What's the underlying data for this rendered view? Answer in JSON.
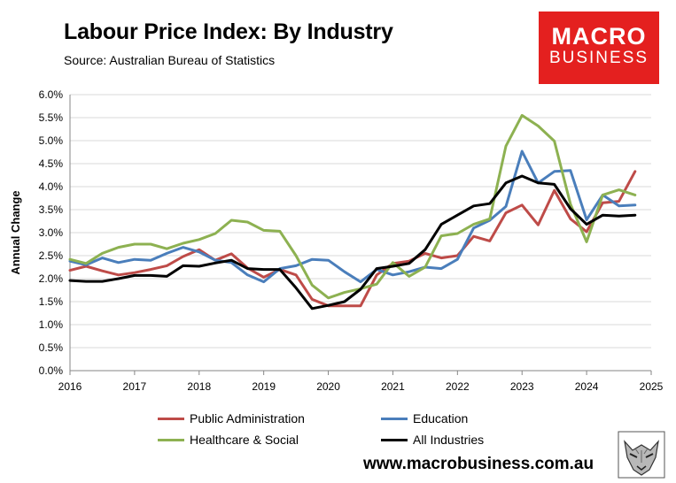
{
  "header": {
    "title": "Labour Price Index: By Industry",
    "subtitle": "Source: Australian Bureau of Statistics"
  },
  "logo": {
    "line1": "MACRO",
    "line2": "BUSINESS"
  },
  "footer": {
    "url": "www.macrobusiness.com.au"
  },
  "chart_data": {
    "type": "line",
    "title": "Labour Price Index: By Industry",
    "ylabel": "Annual Change",
    "xlabel": "",
    "xlim": [
      2016,
      2025
    ],
    "ylim": [
      0,
      6
    ],
    "grid": "horizontal",
    "legend_position": "bottom",
    "x_ticks": [
      "2016",
      "2017",
      "2018",
      "2019",
      "2020",
      "2021",
      "2022",
      "2023",
      "2024",
      "2025"
    ],
    "y_ticks": [
      "0.0%",
      "0.5%",
      "1.0%",
      "1.5%",
      "2.0%",
      "2.5%",
      "3.0%",
      "3.5%",
      "4.0%",
      "4.5%",
      "5.0%",
      "5.5%",
      "6.0%"
    ],
    "x": [
      2016.0,
      2016.25,
      2016.5,
      2016.75,
      2017.0,
      2017.25,
      2017.5,
      2017.75,
      2018.0,
      2018.25,
      2018.5,
      2018.75,
      2019.0,
      2019.25,
      2019.5,
      2019.75,
      2020.0,
      2020.25,
      2020.5,
      2020.75,
      2021.0,
      2021.25,
      2021.5,
      2021.75,
      2022.0,
      2022.25,
      2022.5,
      2022.75,
      2023.0,
      2023.25,
      2023.5,
      2023.75,
      2024.0,
      2024.25,
      2024.5,
      2024.75
    ],
    "series": [
      {
        "name": "Public Administration",
        "color": "#be4b48",
        "values": [
          2.18,
          2.27,
          2.17,
          2.08,
          2.13,
          2.2,
          2.28,
          2.48,
          2.63,
          2.4,
          2.54,
          2.23,
          2.03,
          2.2,
          2.08,
          1.55,
          1.41,
          1.41,
          1.41,
          2.08,
          2.33,
          2.38,
          2.55,
          2.45,
          2.5,
          2.92,
          2.82,
          3.43,
          3.6,
          3.17,
          3.92,
          3.3,
          3.02,
          3.65,
          3.68,
          4.33
        ]
      },
      {
        "name": "Education",
        "color": "#4a7ebb",
        "values": [
          2.38,
          2.3,
          2.45,
          2.35,
          2.42,
          2.4,
          2.55,
          2.68,
          2.58,
          2.4,
          2.35,
          2.08,
          1.93,
          2.22,
          2.28,
          2.42,
          2.4,
          2.15,
          1.93,
          2.2,
          2.08,
          2.15,
          2.25,
          2.22,
          2.42,
          3.1,
          3.27,
          3.57,
          4.77,
          4.08,
          4.33,
          4.35,
          3.28,
          3.82,
          3.58,
          3.6
        ]
      },
      {
        "name": "Healthcare & Social",
        "color": "#8db151",
        "values": [
          2.42,
          2.33,
          2.55,
          2.68,
          2.75,
          2.75,
          2.65,
          2.77,
          2.85,
          2.98,
          3.27,
          3.23,
          3.05,
          3.03,
          2.5,
          1.86,
          1.58,
          1.7,
          1.78,
          1.88,
          2.35,
          2.05,
          2.25,
          2.93,
          2.98,
          3.18,
          3.3,
          4.88,
          5.55,
          5.32,
          4.99,
          3.62,
          2.8,
          3.82,
          3.93,
          3.82
        ]
      },
      {
        "name": "All Industries",
        "color": "#000000",
        "values": [
          1.96,
          1.94,
          1.94,
          2.0,
          2.07,
          2.07,
          2.05,
          2.28,
          2.27,
          2.34,
          2.4,
          2.22,
          2.2,
          2.2,
          1.8,
          1.35,
          1.42,
          1.5,
          1.77,
          2.22,
          2.27,
          2.33,
          2.63,
          3.18,
          3.38,
          3.58,
          3.63,
          4.08,
          4.23,
          4.08,
          4.05,
          3.52,
          3.18,
          3.38,
          3.36,
          3.38
        ]
      }
    ]
  }
}
